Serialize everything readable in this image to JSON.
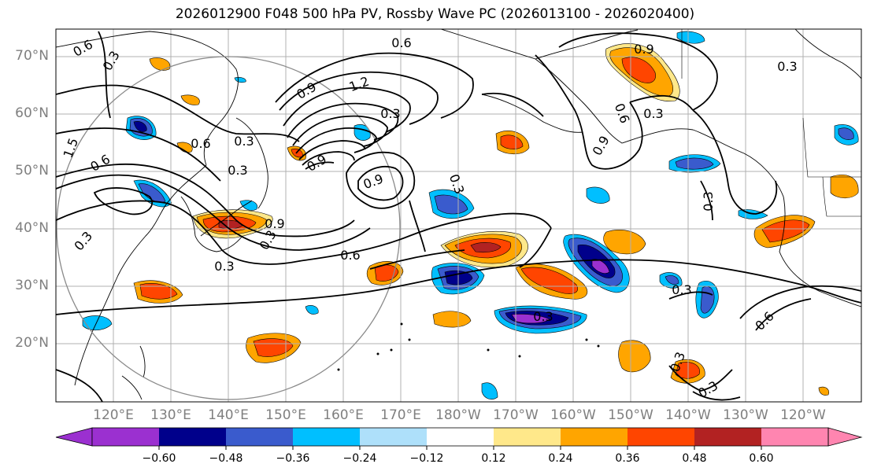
{
  "title": "2026012900 F048 500 hPa PV, Rossby Wave PC (2026013100 - 2026020400)",
  "lat_labels": [
    "70°N",
    "60°N",
    "50°N",
    "40°N",
    "30°N",
    "20°N"
  ],
  "lon_labels": [
    "120°E",
    "130°E",
    "140°E",
    "150°E",
    "160°E",
    "170°E",
    "180°W",
    "170°W",
    "160°W",
    "150°W",
    "140°W",
    "130°W",
    "120°W"
  ],
  "colorbar": {
    "ticks": [
      "−0.60",
      "−0.48",
      "−0.36",
      "−0.24",
      "−0.12",
      "0.12",
      "0.24",
      "0.36",
      "0.48",
      "0.60"
    ],
    "colors": [
      "#9b30d0",
      "#00008b",
      "#3a5bcd",
      "#00bfff",
      "#aee0fa",
      "#ffffff",
      "#ffe88a",
      "#ffa500",
      "#ff4500",
      "#b22222",
      "#ff85b0"
    ]
  },
  "contour_labels": [
    "0.6",
    "0.3",
    "0.6",
    "0.9",
    "1.2",
    "0.9",
    "0.9",
    "0.3",
    "0.6",
    "0.3",
    "0.3",
    "0.9",
    "0.6",
    "0.3",
    "0.3",
    "0.9",
    "0.3",
    "1.5",
    "0.6",
    "0.3",
    "0.3",
    "0.6",
    "0.3",
    "0.9",
    "0.3",
    "0.3",
    "0.3",
    "0.6",
    "0.3",
    "0.3"
  ],
  "colors": {
    "frame": "#000000",
    "grid": "#b0b0b0",
    "coast": "#000000",
    "axis_label": "#7f7f7f"
  }
}
